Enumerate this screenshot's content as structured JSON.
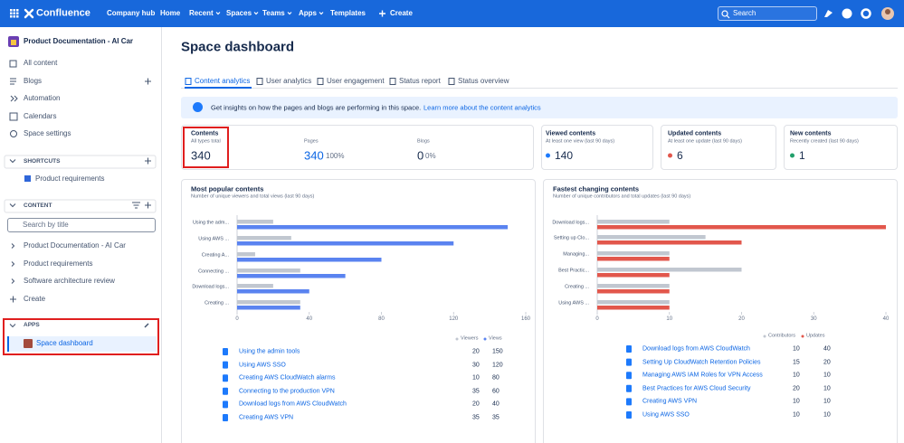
{
  "chart_data": [
    {
      "type": "bar",
      "orientation": "horizontal",
      "title": "Most popular contents",
      "subtitle": "Number of unique viewers and total views (last 90 days)",
      "categories": [
        "Using the adm...",
        "Using AWS ...",
        "Creating A...",
        "Connecting ...",
        "Download logs...",
        "Creating ..."
      ],
      "series": [
        {
          "name": "Viewers",
          "color": "#c1c7d0",
          "values": [
            20,
            30,
            10,
            35,
            20,
            35
          ]
        },
        {
          "name": "Views",
          "color": "#5a83f0",
          "values": [
            150,
            120,
            80,
            60,
            40,
            35
          ]
        }
      ],
      "xlim": [
        0,
        160
      ],
      "xticks": [
        0,
        40,
        80,
        120,
        160
      ]
    },
    {
      "type": "bar",
      "orientation": "horizontal",
      "title": "Fastest changing contents",
      "subtitle": "Number of unique contributors and total updates (last 90 days)",
      "categories": [
        "Download logs...",
        "Setting up Clo...",
        "Managing...",
        "Best Practic...",
        "Creating ...",
        "Using AWS ..."
      ],
      "series": [
        {
          "name": "Contributors",
          "color": "#c1c7d0",
          "values": [
            10,
            15,
            10,
            20,
            10,
            10
          ]
        },
        {
          "name": "Updates",
          "color": "#e2574c",
          "values": [
            40,
            20,
            10,
            10,
            10,
            10
          ]
        }
      ],
      "xlim": [
        0,
        40
      ],
      "xticks": [
        0,
        10,
        20,
        30,
        40
      ]
    }
  ],
  "ui": {
    "nav": {
      "product": "Confluence",
      "items": [
        "Company hub",
        "Home",
        "Recent",
        "Spaces",
        "Teams",
        "Apps",
        "Templates"
      ],
      "create": "Create",
      "search": "Search"
    },
    "sidebar": {
      "space": "Product Documentation - AI Car",
      "links": [
        "All content",
        "Blogs",
        "Automation",
        "Calendars",
        "Space settings"
      ],
      "shortcuts": {
        "heading": "SHORTCUTS",
        "items": [
          "Product requirements"
        ]
      },
      "content": {
        "heading": "CONTENT",
        "search": "Search by title",
        "tree": [
          "Product Documentation - AI Car",
          "Product requirements",
          "Software architecture review"
        ],
        "create": "Create"
      },
      "apps": {
        "heading": "APPS",
        "items": [
          "Space dashboard"
        ]
      }
    },
    "page": {
      "title": "Space dashboard",
      "tabs": [
        "Content analytics",
        "User analytics",
        "User engagement",
        "Status report",
        "Status overview"
      ],
      "banner": {
        "text": "Get insights on how the pages and blogs are performing in this space.",
        "link": "Learn more about the content analytics"
      }
    },
    "stats": {
      "contents": {
        "title": "Contents",
        "caption": "All types total",
        "value": 340
      },
      "pages": {
        "title": "Pages",
        "value": 340,
        "share": "100%"
      },
      "blogs": {
        "title": "Blogs",
        "value": 0,
        "share": "0%"
      },
      "viewed": {
        "title": "Viewed contents",
        "caption": "At least one view (last 90 days)",
        "value": 140
      },
      "updated": {
        "title": "Updated contents",
        "caption": "At least one update (last 90 days)",
        "value": 6
      },
      "new": {
        "title": "New contents",
        "caption": "Recently created (last 90 days)",
        "value": 1
      }
    },
    "tables": [
      {
        "names": [
          "Using the admin tools",
          "Using AWS SSO",
          "Creating AWS CloudWatch alarms",
          "Connecting to the production VPN",
          "Download logs from AWS CloudWatch",
          "Creating AWS VPN"
        ]
      },
      {
        "names": [
          "Download logs from AWS CloudWatch",
          "Setting Up CloudWatch Retention Policies",
          "Managing AWS IAM Roles for VPN Access",
          "Best Practices for AWS Cloud Security",
          "Creating AWS VPN",
          "Using AWS SSO"
        ]
      }
    ]
  }
}
